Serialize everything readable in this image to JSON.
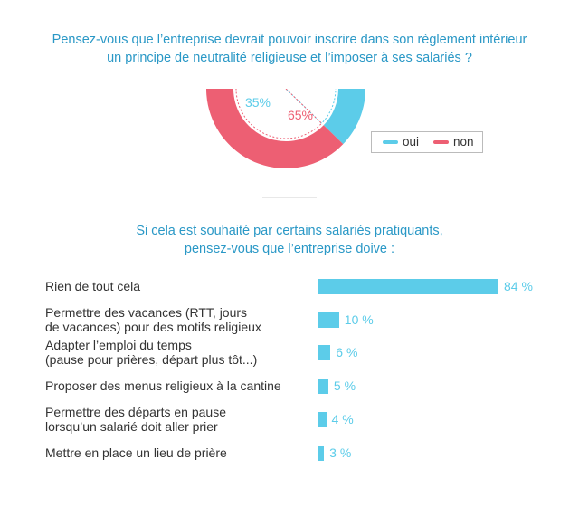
{
  "chart_data": [
    {
      "type": "pie",
      "title_lines": [
        "Pensez-vous que l’entreprise devrait pouvoir inscrire dans son règlement intérieur",
        "un principe de neutralité religieuse et l’imposer à ses salariés ?"
      ],
      "slices": [
        {
          "name": "oui",
          "value": 35,
          "label": "35%",
          "color": "#5ccce9"
        },
        {
          "name": "non",
          "value": 65,
          "label": "65%",
          "color": "#ed5f73"
        }
      ],
      "legend": "right",
      "legend_labels": [
        "oui",
        "non"
      ]
    },
    {
      "type": "bar",
      "orientation": "horizontal",
      "title_lines": [
        "Si cela est souhaité par certains salariés pratiquants,",
        "pensez-vous que l’entreprise doive :"
      ],
      "categories": [
        [
          "Rien de tout cela"
        ],
        [
          "Permettre des vacances (RTT, jours",
          "de vacances) pour des motifs religieux"
        ],
        [
          "Adapter l’emploi du temps",
          "(pause pour prières, départ plus tôt...)"
        ],
        [
          "Proposer des menus religieux à la cantine"
        ],
        [
          "Permettre des départs en pause",
          "lorsqu’un salarié doit aller prier"
        ],
        [
          "Mettre en place un lieu de prière"
        ]
      ],
      "values": [
        84,
        10,
        6,
        5,
        4,
        3
      ],
      "value_labels": [
        "84 %",
        "10 %",
        "6 %",
        "5 %",
        "4 %",
        "3 %"
      ],
      "color": "#5ccce9",
      "xlim": [
        0,
        100
      ]
    }
  ]
}
